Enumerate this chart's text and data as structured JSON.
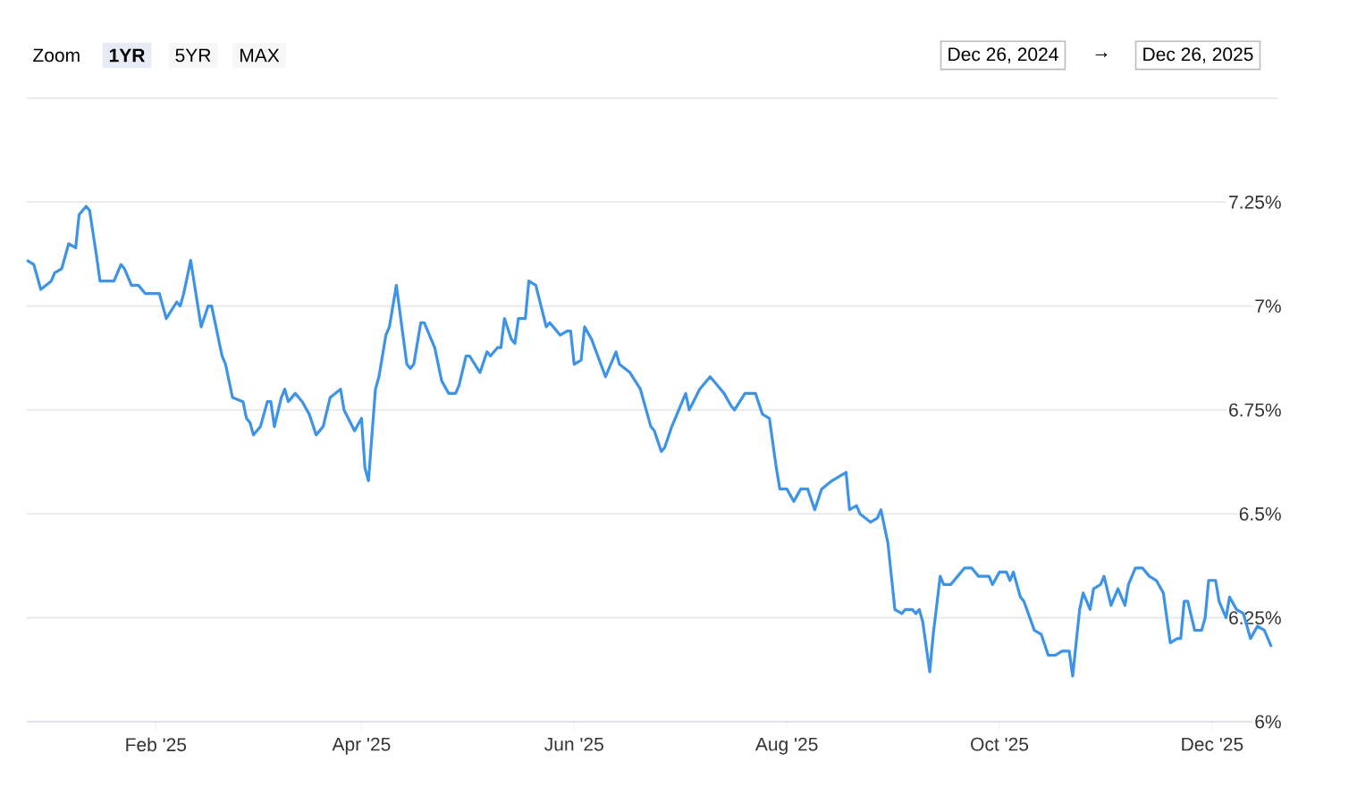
{
  "chart_data": {
    "type": "line",
    "color": "#3d94e6",
    "grid": "y",
    "annotations": [
      "Zoom",
      "1YR",
      "5YR",
      "MAX",
      "Dec 26, 2024",
      "→",
      "Dec 26, 2025"
    ],
    "xlim": [
      "2024-12-26",
      "2025-12-20"
    ],
    "xticks": [
      {
        "value": "2025-02-01",
        "label": "Feb '25"
      },
      {
        "value": "2025-04-01",
        "label": "Apr '25"
      },
      {
        "value": "2025-06-01",
        "label": "Jun '25"
      },
      {
        "value": "2025-08-01",
        "label": "Aug '25"
      },
      {
        "value": "2025-10-01",
        "label": "Oct '25"
      },
      {
        "value": "2025-12-01",
        "label": "Dec '25"
      }
    ],
    "ylim": [
      6,
      7.5
    ],
    "yticks": [
      {
        "value": 6,
        "label": "6%"
      },
      {
        "value": 6.25,
        "label": "6.25%"
      },
      {
        "value": 6.5,
        "label": "6.5%"
      },
      {
        "value": 6.75,
        "label": "6.75%"
      },
      {
        "value": 7,
        "label": "7%"
      },
      {
        "value": 7.25,
        "label": "7.25%"
      },
      {
        "value": 7.5,
        "label": null
      }
    ],
    "x": [
      "2024-12-26",
      "2024-12-28",
      "2024-12-30",
      "2025-01-02",
      "2025-01-03",
      "2025-01-05",
      "2025-01-07",
      "2025-01-09",
      "2025-01-10",
      "2025-01-12",
      "2025-01-13",
      "2025-01-15",
      "2025-01-16",
      "2025-01-18",
      "2025-01-20",
      "2025-01-22",
      "2025-01-23",
      "2025-01-25",
      "2025-01-27",
      "2025-01-29",
      "2025-02-02",
      "2025-02-04",
      "2025-02-07",
      "2025-02-08",
      "2025-02-09",
      "2025-02-11",
      "2025-02-14",
      "2025-02-16",
      "2025-02-17",
      "2025-02-20",
      "2025-02-21",
      "2025-02-23",
      "2025-02-26",
      "2025-02-27",
      "2025-02-28",
      "2025-03-01",
      "2025-03-03",
      "2025-03-05",
      "2025-03-06",
      "2025-03-07",
      "2025-03-09",
      "2025-03-10",
      "2025-03-11",
      "2025-03-13",
      "2025-03-15",
      "2025-03-17",
      "2025-03-19",
      "2025-03-21",
      "2025-03-23",
      "2025-03-26",
      "2025-03-27",
      "2025-03-30",
      "2025-04-01",
      "2025-04-02",
      "2025-04-03",
      "2025-04-05",
      "2025-04-06",
      "2025-04-08",
      "2025-04-09",
      "2025-04-11",
      "2025-04-14",
      "2025-04-15",
      "2025-04-16",
      "2025-04-18",
      "2025-04-19",
      "2025-04-21",
      "2025-04-22",
      "2025-04-24",
      "2025-04-26",
      "2025-04-28",
      "2025-04-29",
      "2025-05-01",
      "2025-05-02",
      "2025-05-05",
      "2025-05-07",
      "2025-05-08",
      "2025-05-10",
      "2025-05-11",
      "2025-05-12",
      "2025-05-14",
      "2025-05-15",
      "2025-05-16",
      "2025-05-18",
      "2025-05-19",
      "2025-05-21",
      "2025-05-24",
      "2025-05-25",
      "2025-05-26",
      "2025-05-28",
      "2025-05-30",
      "2025-05-31",
      "2025-06-01",
      "2025-06-03",
      "2025-06-04",
      "2025-06-06",
      "2025-06-10",
      "2025-06-13",
      "2025-06-14",
      "2025-06-17",
      "2025-06-20",
      "2025-06-23",
      "2025-06-24",
      "2025-06-26",
      "2025-06-27",
      "2025-06-29",
      "2025-06-30",
      "2025-07-03",
      "2025-07-04",
      "2025-07-07",
      "2025-07-10",
      "2025-07-12",
      "2025-07-14",
      "2025-07-16",
      "2025-07-17",
      "2025-07-20",
      "2025-07-23",
      "2025-07-25",
      "2025-07-27",
      "2025-07-29",
      "2025-07-30",
      "2025-08-01",
      "2025-08-03",
      "2025-08-05",
      "2025-08-07",
      "2025-08-09",
      "2025-08-11",
      "2025-08-14",
      "2025-08-18",
      "2025-08-19",
      "2025-08-21",
      "2025-08-22",
      "2025-08-25",
      "2025-08-27",
      "2025-08-28",
      "2025-08-30",
      "2025-09-01",
      "2025-09-03",
      "2025-09-04",
      "2025-09-06",
      "2025-09-07",
      "2025-09-08",
      "2025-09-09",
      "2025-09-11",
      "2025-09-12",
      "2025-09-14",
      "2025-09-15",
      "2025-09-17",
      "2025-09-19",
      "2025-09-21",
      "2025-09-23",
      "2025-09-25",
      "2025-09-28",
      "2025-09-29",
      "2025-10-01",
      "2025-10-03",
      "2025-10-04",
      "2025-10-05",
      "2025-10-07",
      "2025-10-08",
      "2025-10-11",
      "2025-10-13",
      "2025-10-15",
      "2025-10-17",
      "2025-10-19",
      "2025-10-21",
      "2025-10-22",
      "2025-10-24",
      "2025-10-25",
      "2025-10-27",
      "2025-10-28",
      "2025-10-30",
      "2025-10-31",
      "2025-11-02",
      "2025-11-03",
      "2025-11-04",
      "2025-11-06",
      "2025-11-07",
      "2025-11-09",
      "2025-11-11",
      "2025-11-13",
      "2025-11-15",
      "2025-11-17",
      "2025-11-19",
      "2025-11-21",
      "2025-11-22",
      "2025-11-23",
      "2025-11-24",
      "2025-11-26",
      "2025-11-28",
      "2025-11-29",
      "2025-11-30",
      "2025-12-02",
      "2025-12-03",
      "2025-12-05",
      "2025-12-06",
      "2025-12-08",
      "2025-12-10",
      "2025-12-12",
      "2025-12-14",
      "2025-12-16",
      "2025-12-17",
      "2025-12-18"
    ],
    "values": [
      7.11,
      7.1,
      7.04,
      7.06,
      7.08,
      7.09,
      7.15,
      7.14,
      7.22,
      7.24,
      7.23,
      7.12,
      7.06,
      7.06,
      7.06,
      7.1,
      7.09,
      7.05,
      7.05,
      7.03,
      7.03,
      6.97,
      7.01,
      7.0,
      7.03,
      7.11,
      6.95,
      7.0,
      7.0,
      6.88,
      6.86,
      6.78,
      6.77,
      6.73,
      6.72,
      6.69,
      6.71,
      6.77,
      6.77,
      6.71,
      6.78,
      6.8,
      6.77,
      6.79,
      6.77,
      6.74,
      6.69,
      6.71,
      6.78,
      6.8,
      6.75,
      6.7,
      6.73,
      6.61,
      6.58,
      6.8,
      6.83,
      6.93,
      6.95,
      7.05,
      6.86,
      6.85,
      6.86,
      6.96,
      6.96,
      6.92,
      6.9,
      6.82,
      6.79,
      6.79,
      6.81,
      6.88,
      6.88,
      6.84,
      6.89,
      6.88,
      6.9,
      6.9,
      6.97,
      6.92,
      6.91,
      6.97,
      6.97,
      7.06,
      7.05,
      6.95,
      6.96,
      6.95,
      6.93,
      6.94,
      6.94,
      6.86,
      6.87,
      6.95,
      6.92,
      6.83,
      6.89,
      6.86,
      6.84,
      6.8,
      6.71,
      6.7,
      6.65,
      6.66,
      6.71,
      6.73,
      6.79,
      6.75,
      6.8,
      6.83,
      6.81,
      6.79,
      6.76,
      6.75,
      6.79,
      6.79,
      6.74,
      6.73,
      6.61,
      6.56,
      6.56,
      6.53,
      6.56,
      6.56,
      6.51,
      6.56,
      6.58,
      6.6,
      6.51,
      6.52,
      6.5,
      6.48,
      6.49,
      6.51,
      6.43,
      6.27,
      6.26,
      6.27,
      6.27,
      6.26,
      6.27,
      6.24,
      6.12,
      6.21,
      6.35,
      6.33,
      6.33,
      6.35,
      6.37,
      6.37,
      6.35,
      6.35,
      6.33,
      6.36,
      6.36,
      6.34,
      6.36,
      6.3,
      6.29,
      6.22,
      6.21,
      6.16,
      6.16,
      6.17,
      6.17,
      6.11,
      6.27,
      6.31,
      6.27,
      6.32,
      6.33,
      6.35,
      6.28,
      6.3,
      6.32,
      6.28,
      6.33,
      6.37,
      6.37,
      6.35,
      6.34,
      6.31,
      6.19,
      6.2,
      6.2,
      6.29,
      6.29,
      6.22,
      6.22,
      6.25,
      6.34,
      6.34,
      6.29,
      6.25,
      6.3,
      6.27,
      6.26,
      6.2,
      6.23,
      6.22,
      6.2,
      6.18
    ]
  }
}
